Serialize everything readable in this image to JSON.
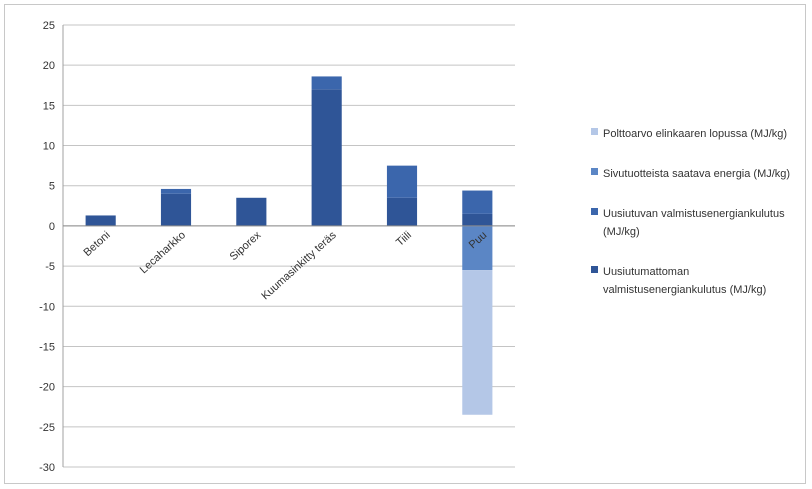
{
  "chart_data": {
    "type": "bar",
    "stacked": true,
    "categories": [
      "Betoni",
      "Lecaharkko",
      "Siporex",
      "Kuumasinkitty teräs",
      "Tiili",
      "Puu"
    ],
    "series": [
      {
        "name": "Uusiutumattoman valmistusenergiankulutus (MJ/kg)",
        "values": [
          1.3,
          4.0,
          3.5,
          17.0,
          3.5,
          1.5
        ],
        "color": "#2f5597"
      },
      {
        "name": "Uusiutuvan valmistusenergiankulutus (MJ/kg)",
        "values": [
          0.0,
          0.6,
          0.0,
          1.6,
          4.0,
          2.9
        ],
        "color": "#3b66ac"
      },
      {
        "name": "Sivutuotteista saatava energia (MJ/kg)",
        "values": [
          0.0,
          0.0,
          0.0,
          0.0,
          0.0,
          -5.5
        ],
        "color": "#5b86c5"
      },
      {
        "name": "Polttoarvo elinkaaren lopussa (MJ/kg)",
        "values": [
          0.0,
          0.0,
          0.0,
          0.0,
          0.0,
          -18.0
        ],
        "color": "#b4c7e7"
      }
    ],
    "ylim": [
      -30,
      25
    ],
    "yticks": [
      25,
      20,
      15,
      10,
      5,
      0,
      -5,
      -10,
      -15,
      -20,
      -25,
      -30
    ],
    "grid": true,
    "legend_position": "right",
    "legend_order": [
      3,
      2,
      1,
      0
    ],
    "title": "",
    "xlabel": "",
    "ylabel": ""
  }
}
